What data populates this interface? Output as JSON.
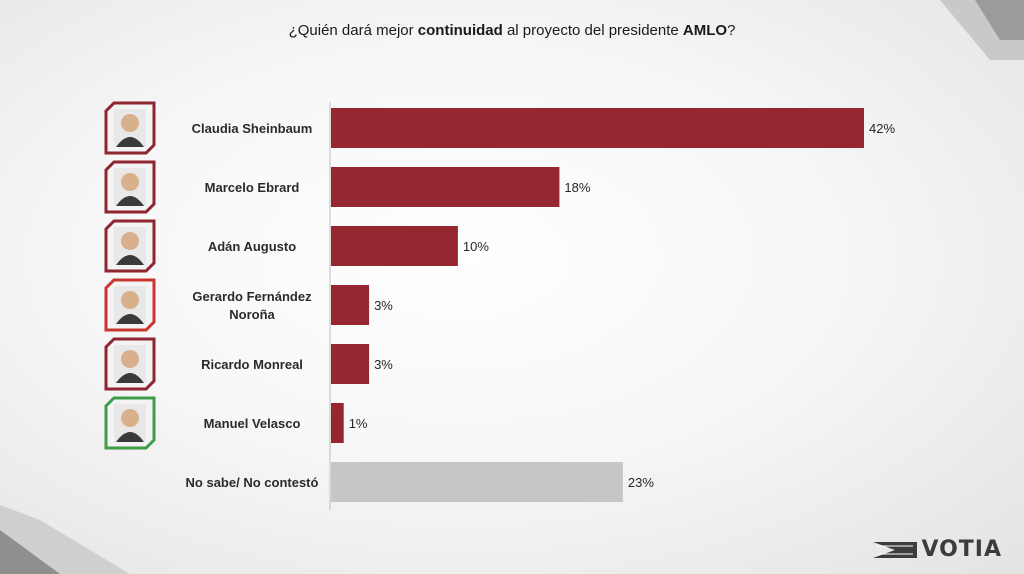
{
  "title": {
    "part1": "¿Quién dará mejor ",
    "bold1": "continuidad",
    "part2": " al proyecto del presidente ",
    "bold2": "AMLO",
    "part3": "?"
  },
  "brand": {
    "name": "VOTIA"
  },
  "colors": {
    "bar": "#962630",
    "bar_neutral": "#c6c6c6",
    "frame_red": "#8e2530",
    "frame_green": "#3f9c48"
  },
  "chart_data": {
    "type": "bar",
    "orientation": "horizontal",
    "categories": [
      [
        "Claudia Sheinbaum"
      ],
      [
        "Marcelo Ebrard"
      ],
      [
        "Adán Augusto"
      ],
      [
        "Gerardo Fernández",
        "Noroña"
      ],
      [
        "Ricardo Monreal"
      ],
      [
        "Manuel Velasco"
      ],
      [
        "No sabe/ No contestó"
      ]
    ],
    "values": [
      42,
      18,
      10,
      3,
      3,
      1,
      23
    ],
    "value_labels": [
      "42%",
      "18%",
      "10%",
      "3%",
      "3%",
      "1%",
      "23%"
    ],
    "bar_colors": [
      "#962630",
      "#962630",
      "#962630",
      "#962630",
      "#962630",
      "#962630",
      "#c6c6c6"
    ],
    "photo_frame_colors": [
      "#8e2530",
      "#8e2530",
      "#8e2530",
      "#c8372f",
      "#8e2530",
      "#3f9c48",
      null
    ],
    "unit": "%",
    "xlim": [
      0,
      42
    ],
    "grid": false,
    "legend": "none"
  }
}
